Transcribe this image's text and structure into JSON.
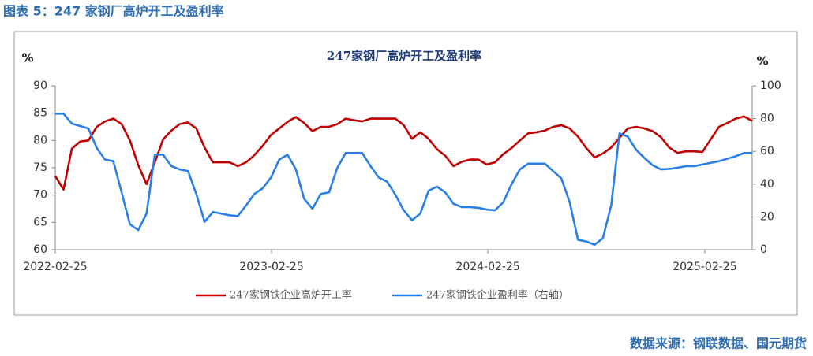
{
  "header": {
    "caption": "图表 5：247 家钢厂高炉开工及盈利率",
    "source": "数据来源：钢联数据、国元期货"
  },
  "chart_data": {
    "type": "line",
    "title": "247家钢厂高炉开工及盈利率",
    "ylabel": "%",
    "y2label": "%",
    "x": [
      "2022-02-25",
      "2022-03-11",
      "2022-03-25",
      "2022-04-08",
      "2022-04-22",
      "2022-05-06",
      "2022-05-20",
      "2022-06-03",
      "2022-06-17",
      "2022-07-01",
      "2022-07-15",
      "2022-07-29",
      "2022-08-12",
      "2022-08-26",
      "2022-09-09",
      "2022-09-23",
      "2022-10-07",
      "2022-10-21",
      "2022-11-04",
      "2022-11-18",
      "2022-12-02",
      "2022-12-16",
      "2022-12-30",
      "2023-01-13",
      "2023-01-27",
      "2023-02-10",
      "2023-02-24",
      "2023-03-10",
      "2023-03-24",
      "2023-04-07",
      "2023-04-21",
      "2023-05-05",
      "2023-05-19",
      "2023-06-02",
      "2023-06-16",
      "2023-06-30",
      "2023-07-14",
      "2023-07-28",
      "2023-08-11",
      "2023-08-25",
      "2023-09-08",
      "2023-09-22",
      "2023-10-06",
      "2023-10-20",
      "2023-11-03",
      "2023-11-17",
      "2023-12-01",
      "2023-12-15",
      "2023-12-29",
      "2024-01-12",
      "2024-01-26",
      "2024-02-09",
      "2024-02-23",
      "2024-03-08",
      "2024-03-22",
      "2024-04-05",
      "2024-04-19",
      "2024-05-03",
      "2024-05-17",
      "2024-05-31",
      "2024-06-14",
      "2024-06-28",
      "2024-07-12",
      "2024-07-26",
      "2024-08-09",
      "2024-08-23",
      "2024-09-06",
      "2024-09-20",
      "2024-10-04",
      "2024-10-18",
      "2024-11-01",
      "2024-11-15",
      "2024-11-29",
      "2024-12-13",
      "2024-12-27",
      "2025-01-10",
      "2025-01-24",
      "2025-02-07",
      "2025-02-21",
      "2025-03-07",
      "2025-03-21",
      "2025-04-04",
      "2025-04-18",
      "2025-05-02",
      "2025-05-16"
    ],
    "xlim": [
      "2022-02-25",
      "2025-05-16"
    ],
    "xticks": [
      "2022-02-25",
      "2023-02-25",
      "2024-02-25",
      "2025-02-25"
    ],
    "ylim": [
      60,
      90
    ],
    "yticks": [
      60,
      65,
      70,
      75,
      80,
      85,
      90
    ],
    "y2lim": [
      0,
      100
    ],
    "y2ticks": [
      0,
      20,
      40,
      60,
      80,
      100
    ],
    "series": [
      {
        "name": "247家钢铁企业高炉开工率",
        "color": "#c00000",
        "values": [
          73.5,
          71,
          78.5,
          79.8,
          80,
          82.5,
          83.5,
          84,
          83,
          80,
          75.5,
          72,
          76,
          80.2,
          81.8,
          83,
          83.3,
          82.2,
          78.7,
          76,
          76,
          76,
          75.3,
          76,
          77.3,
          79,
          81,
          82.2,
          83.4,
          84.3,
          83.2,
          81.7,
          82.5,
          82.5,
          83,
          84,
          83.7,
          83.5,
          84,
          84,
          84,
          84,
          82.8,
          80.3,
          81.5,
          80.3,
          78.4,
          77.2,
          75.3,
          76.1,
          76.5,
          76.5,
          75.6,
          76,
          77.5,
          78.6,
          80,
          81.3,
          81.5,
          81.8,
          82.5,
          82.8,
          82.2,
          80.7,
          78.6,
          76.9,
          77.6,
          78.7,
          80.5,
          82.2,
          82.5,
          82.2,
          81.7,
          80.6,
          78.7,
          77.7,
          78,
          78,
          77.9,
          80.2,
          82.5,
          83.2,
          84,
          84.4,
          83.6
        ]
      },
      {
        "name": "247家钢铁企业盈利率（右轴）",
        "color": "#2a7fe6",
        "axis": "y2",
        "values": [
          83,
          83,
          77,
          75.5,
          74,
          62,
          55,
          54,
          35,
          15.5,
          12,
          22,
          58,
          58,
          51,
          49,
          48,
          34,
          17,
          23,
          22,
          21,
          20.5,
          27,
          34,
          37.5,
          44,
          55,
          58,
          49,
          31,
          25,
          34,
          35,
          50,
          59,
          59,
          59,
          51,
          44,
          41.5,
          33.5,
          24,
          18,
          22,
          36,
          38.5,
          35,
          28,
          26,
          26,
          25.5,
          24.5,
          24,
          29,
          40,
          49,
          52.5,
          52.5,
          52.5,
          48,
          43.5,
          29,
          6,
          5,
          3,
          7,
          27,
          71,
          69,
          61,
          56,
          51.5,
          49,
          49.3,
          50,
          51,
          51,
          52,
          53,
          54,
          55.5,
          57,
          59,
          59
        ]
      }
    ]
  }
}
